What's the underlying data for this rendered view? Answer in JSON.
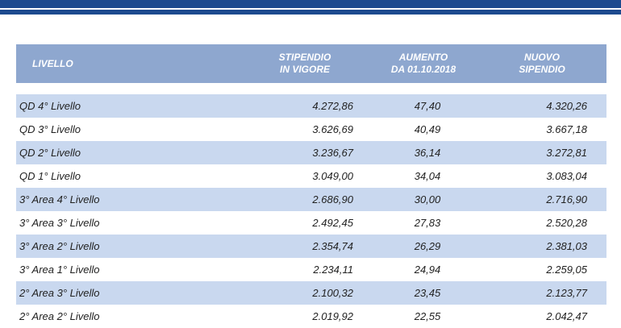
{
  "table": {
    "header": [
      [
        "LIVELLO"
      ],
      [
        "STIPENDIO",
        "IN VIGORE"
      ],
      [
        "AUMENTO",
        "DA 01.10.2018"
      ],
      [
        "NUOVO",
        "SIPENDIO"
      ]
    ],
    "rows": [
      [
        "QD 4° Livello",
        "4.272,86",
        "47,40",
        "4.320,26"
      ],
      [
        "QD 3° Livello",
        "3.626,69",
        "40,49",
        "3.667,18"
      ],
      [
        "QD 2° Livello",
        "3.236,67",
        "36,14",
        "3.272,81"
      ],
      [
        "QD 1° Livello",
        "3.049,00",
        "34,04",
        "3.083,04"
      ],
      [
        "3° Area  4° Livello",
        "2.686,90",
        "30,00",
        "2.716,90"
      ],
      [
        "3° Area  3° Livello",
        "2.492,45",
        "27,83",
        "2.520,28"
      ],
      [
        "3° Area  2° Livello",
        "2.354,74",
        "26,29",
        "2.381,03"
      ],
      [
        "3° Area  1° Livello",
        "2.234,11",
        "24,94",
        "2.259,05"
      ],
      [
        "2° Area  3° Livello",
        "2.100,32",
        "23,45",
        "2.123,77"
      ],
      [
        "2° Area  2° Livello",
        "2.019,92",
        "22,55",
        "2.042,47"
      ]
    ]
  }
}
